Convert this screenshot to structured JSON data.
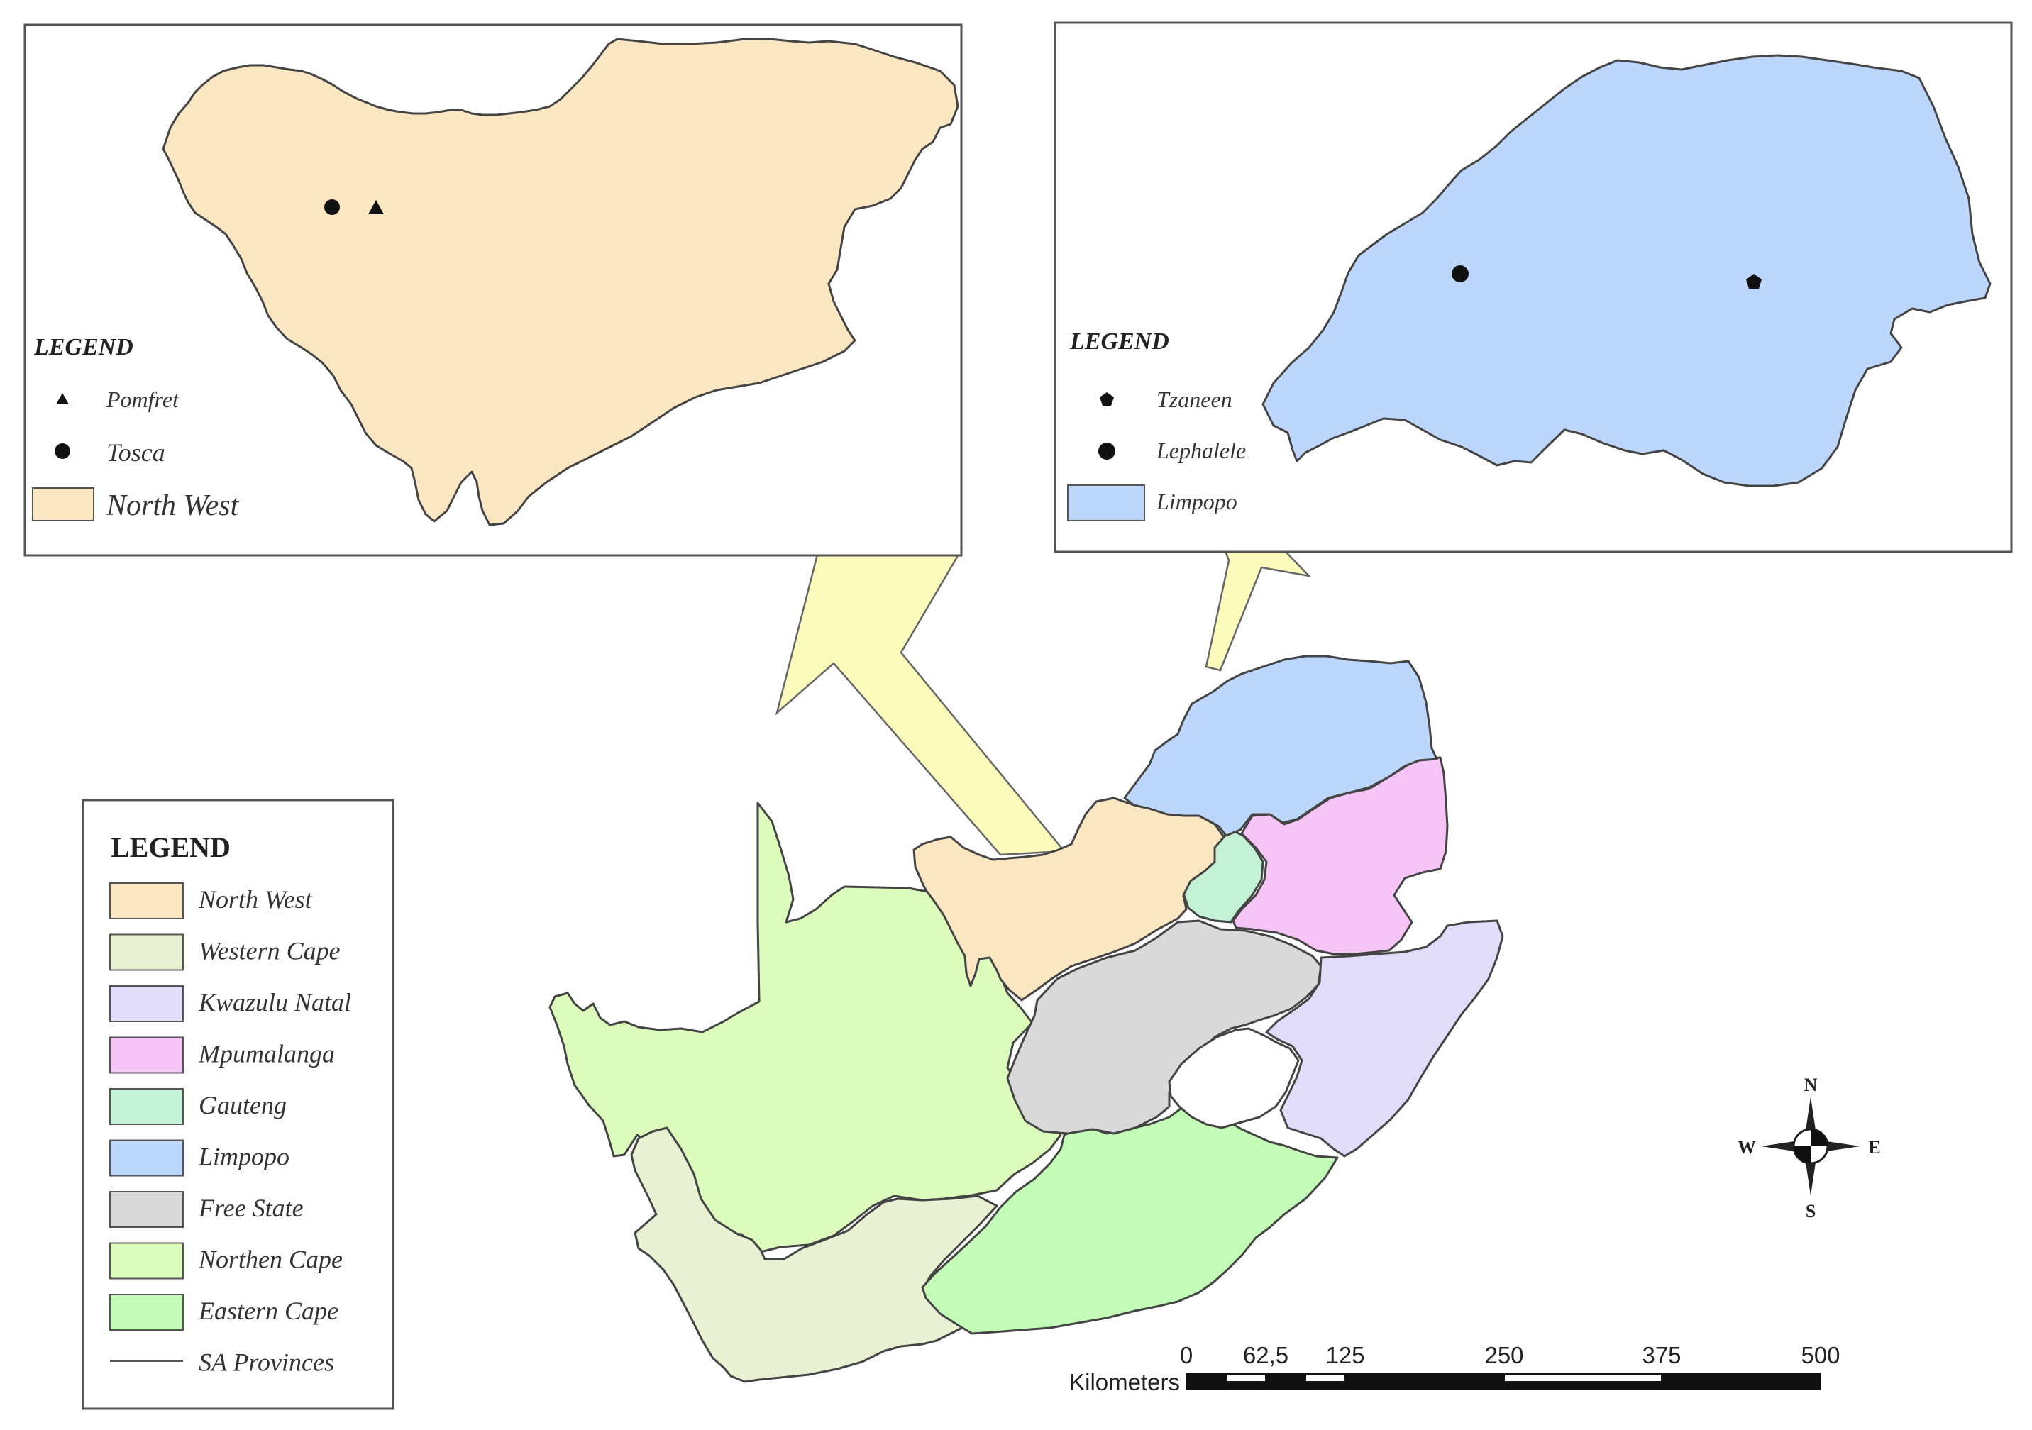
{
  "colors": {
    "north_west": "#fbe6c2",
    "western_cape": "#e8f2d2",
    "kwazulu_natal": "#e0dcfa",
    "mpumalanga": "#f6c4f6",
    "gauteng": "#c4f2d6",
    "limpopo": "#bcd6fc",
    "free_state": "#d9d9d9",
    "northern_cape": "#dcfcbc",
    "eastern_cape": "#c2fcb6",
    "arrow": "#fbfbbc"
  },
  "inset_north_west": {
    "legend_title": "LEGEND",
    "items": [
      {
        "label": "Pomfret",
        "icon": "triangle-marker"
      },
      {
        "label": "Tosca",
        "icon": "circle-marker"
      },
      {
        "label": "North West",
        "icon": "area-swatch"
      }
    ]
  },
  "inset_limpopo": {
    "legend_title": "LEGEND",
    "items": [
      {
        "label": "Tzaneen",
        "icon": "pentagon-marker"
      },
      {
        "label": "Lephalele",
        "icon": "circle-marker"
      },
      {
        "label": "Limpopo",
        "icon": "area-swatch"
      }
    ]
  },
  "main_legend": {
    "title": "LEGEND",
    "items": [
      {
        "label": "North West",
        "color_key": "north_west"
      },
      {
        "label": "Western Cape",
        "color_key": "western_cape"
      },
      {
        "label": "Kwazulu Natal",
        "color_key": "kwazulu_natal"
      },
      {
        "label": "Mpumalanga",
        "color_key": "mpumalanga"
      },
      {
        "label": "Gauteng",
        "color_key": "gauteng"
      },
      {
        "label": "Limpopo",
        "color_key": "limpopo"
      },
      {
        "label": "Free State",
        "color_key": "free_state"
      },
      {
        "label": "Northen Cape",
        "color_key": "northern_cape"
      },
      {
        "label": "Eastern Cape",
        "color_key": "eastern_cape"
      },
      {
        "label": "SA Provinces",
        "color_key": "line"
      }
    ]
  },
  "scale_bar": {
    "unit_label": "Kilometers",
    "ticks": [
      "0",
      "62,5",
      "125",
      "250",
      "375",
      "500"
    ]
  },
  "compass": {
    "n": "N",
    "s": "S",
    "e": "E",
    "w": "W"
  }
}
